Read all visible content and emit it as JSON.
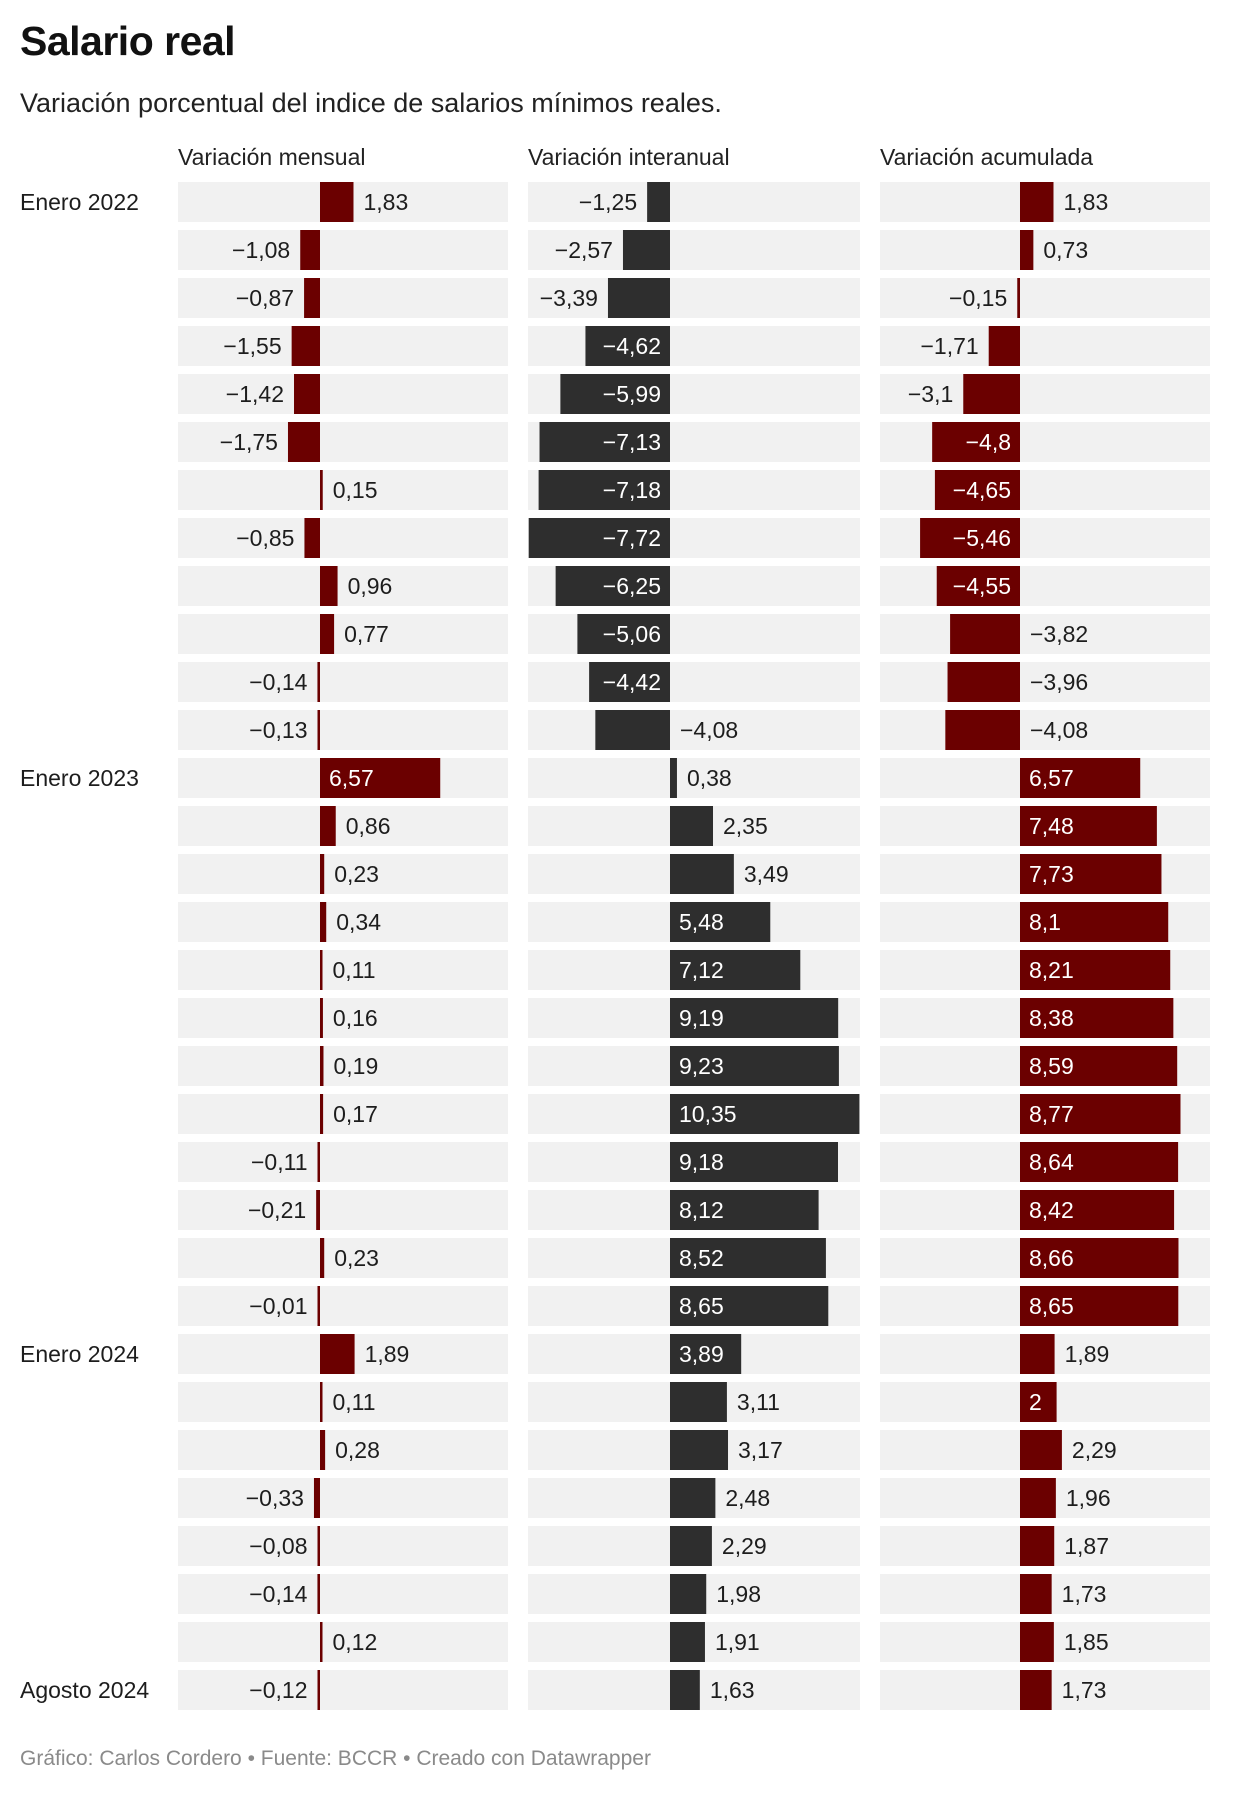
{
  "title": "Salario real",
  "subtitle": "Variación porcentual del indice de salarios mínimos reales.",
  "footer": "Gráfico: Carlos Cordero • Fuente: BCCR • Creado con Datawrapper",
  "colors": {
    "background_track": "#f1f1f1",
    "bar_red": "#6b0000",
    "bar_dark": "#2e2e2e",
    "text": "#1d1d1d",
    "text_inside": "#ffffff",
    "footer": "#8a8a8a"
  },
  "chart_data": {
    "type": "bar",
    "orientation": "horizontal",
    "title": "Salario real",
    "subtitle": "Variación porcentual del indice de salarios mínimos reales.",
    "row_labels": [
      "Enero 2022",
      "",
      "",
      "",
      "",
      "",
      "",
      "",
      "",
      "",
      "",
      "",
      "Enero 2023",
      "",
      "",
      "",
      "",
      "",
      "",
      "",
      "",
      "",
      "",
      "",
      "Enero 2024",
      "",
      "",
      "",
      "",
      "",
      "",
      "Agosto 2024"
    ],
    "x_range": [
      -7.72,
      10.35
    ],
    "series": [
      {
        "name": "Variación mensual",
        "color": "#6b0000",
        "values": [
          1.83,
          -1.08,
          -0.87,
          -1.55,
          -1.42,
          -1.75,
          0.15,
          -0.85,
          0.96,
          0.77,
          -0.14,
          -0.13,
          6.57,
          0.86,
          0.23,
          0.34,
          0.11,
          0.16,
          0.19,
          0.17,
          -0.11,
          -0.21,
          0.23,
          -0.01,
          1.89,
          0.11,
          0.28,
          -0.33,
          -0.08,
          -0.14,
          0.12,
          -0.12
        ],
        "labels": [
          "1,83",
          "−1,08",
          "−0,87",
          "−1,55",
          "−1,42",
          "−1,75",
          "0,15",
          "−0,85",
          "0,96",
          "0,77",
          "−0,14",
          "−0,13",
          "6,57",
          "0,86",
          "0,23",
          "0,34",
          "0,11",
          "0,16",
          "0,19",
          "0,17",
          "−0,11",
          "−0,21",
          "0,23",
          "−0,01",
          "1,89",
          "0,11",
          "0,28",
          "−0,33",
          "−0,08",
          "−0,14",
          "0,12",
          "−0,12"
        ],
        "label_pos": [
          "out",
          "out",
          "out",
          "out",
          "out",
          "out",
          "out",
          "out",
          "out",
          "out",
          "out",
          "out",
          "in",
          "out",
          "out",
          "out",
          "out",
          "out",
          "out",
          "out",
          "out",
          "out",
          "out",
          "out",
          "out",
          "out",
          "out",
          "out",
          "out",
          "out",
          "out",
          "out"
        ]
      },
      {
        "name": "Variación interanual",
        "color": "#2e2e2e",
        "values": [
          -1.25,
          -2.57,
          -3.39,
          -4.62,
          -5.99,
          -7.13,
          -7.18,
          -7.72,
          -6.25,
          -5.06,
          -4.42,
          -4.08,
          0.38,
          2.35,
          3.49,
          5.48,
          7.12,
          9.19,
          9.23,
          10.35,
          9.18,
          8.12,
          8.52,
          8.65,
          3.89,
          3.11,
          3.17,
          2.48,
          2.29,
          1.98,
          1.91,
          1.63
        ],
        "labels": [
          "−1,25",
          "−2,57",
          "−3,39",
          "−4,62",
          "−5,99",
          "−7,13",
          "−7,18",
          "−7,72",
          "−6,25",
          "−5,06",
          "−4,42",
          "−4,08",
          "0,38",
          "2,35",
          "3,49",
          "5,48",
          "7,12",
          "9,19",
          "9,23",
          "10,35",
          "9,18",
          "8,12",
          "8,52",
          "8,65",
          "3,89",
          "3,11",
          "3,17",
          "2,48",
          "2,29",
          "1,98",
          "1,91",
          "1,63"
        ],
        "label_pos": [
          "out",
          "out",
          "out",
          "in",
          "in",
          "in",
          "in",
          "in",
          "in",
          "in",
          "in",
          "opp",
          "out",
          "out",
          "out",
          "in",
          "in",
          "in",
          "in",
          "in",
          "in",
          "in",
          "in",
          "in",
          "in",
          "out",
          "out",
          "out",
          "out",
          "out",
          "out",
          "out"
        ]
      },
      {
        "name": "Variación acumulada",
        "color": "#6b0000",
        "values": [
          1.83,
          0.73,
          -0.15,
          -1.71,
          -3.1,
          -4.8,
          -4.65,
          -5.46,
          -4.55,
          -3.82,
          -3.96,
          -4.08,
          6.57,
          7.48,
          7.73,
          8.1,
          8.21,
          8.38,
          8.59,
          8.77,
          8.64,
          8.42,
          8.66,
          8.65,
          1.89,
          2,
          2.29,
          1.96,
          1.87,
          1.73,
          1.85,
          1.73
        ],
        "labels": [
          "1,83",
          "0,73",
          "−0,15",
          "−1,71",
          "−3,1",
          "−4,8",
          "−4,65",
          "−5,46",
          "−4,55",
          "−3,82",
          "−3,96",
          "−4,08",
          "6,57",
          "7,48",
          "7,73",
          "8,1",
          "8,21",
          "8,38",
          "8,59",
          "8,77",
          "8,64",
          "8,42",
          "8,66",
          "8,65",
          "1,89",
          "2",
          "2,29",
          "1,96",
          "1,87",
          "1,73",
          "1,85",
          "1,73"
        ],
        "label_pos": [
          "out",
          "out",
          "out",
          "out",
          "out",
          "in",
          "in",
          "in",
          "in",
          "opp",
          "opp",
          "opp",
          "in",
          "in",
          "in",
          "in",
          "in",
          "in",
          "in",
          "in",
          "in",
          "in",
          "in",
          "in",
          "out",
          "in",
          "out",
          "out",
          "out",
          "out",
          "out",
          "out"
        ]
      }
    ]
  }
}
